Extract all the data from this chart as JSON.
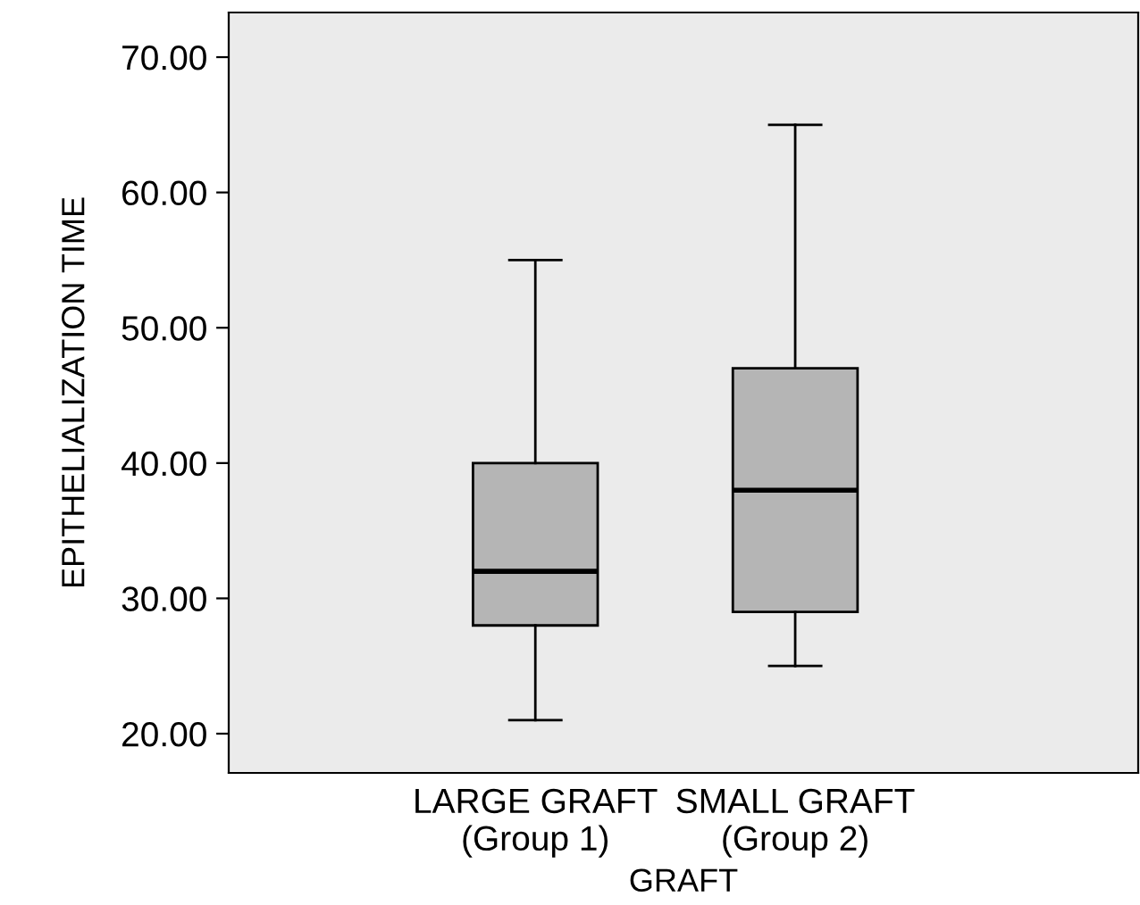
{
  "chart_data": {
    "type": "box",
    "xlabel": "GRAFT",
    "ylabel": "EPITHELIALIZATION TIME",
    "categories": [
      "LARGE GRAFT\n(Group 1)",
      "SMALL GRAFT\n(Group 2)"
    ],
    "boxes": [
      {
        "low": 21,
        "q1": 28,
        "median": 32,
        "q3": 40,
        "high": 55
      },
      {
        "low": 25,
        "q1": 29,
        "median": 38,
        "q3": 47,
        "high": 65
      }
    ],
    "color": "#b5b5b5",
    "ylim": [
      17.1,
      73.3
    ],
    "yticks": [
      {
        "value": 20,
        "label": "20.00"
      },
      {
        "value": 30,
        "label": "30.00"
      },
      {
        "value": 40,
        "label": "40.00"
      },
      {
        "value": 50,
        "label": "50.00"
      },
      {
        "value": 60,
        "label": "60.00"
      },
      {
        "value": 70,
        "label": "70.00"
      }
    ],
    "grid": false,
    "legend": false
  }
}
